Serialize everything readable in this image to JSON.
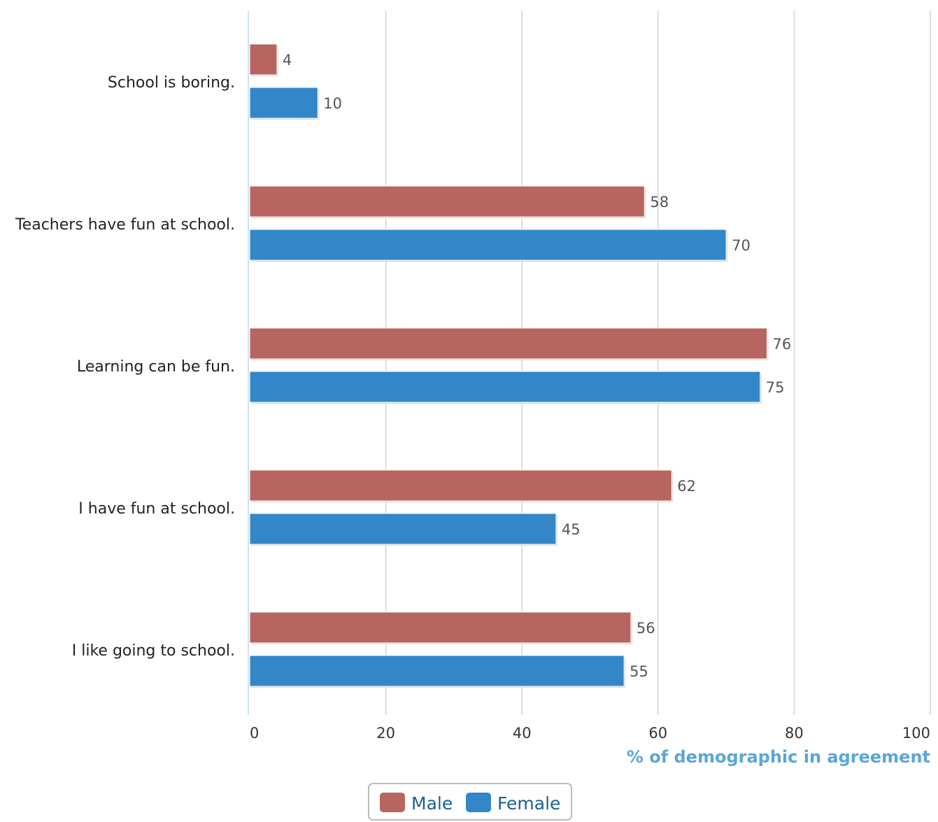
{
  "chart_data": {
    "type": "bar",
    "orientation": "horizontal",
    "categories": [
      "School is boring.",
      "Teachers have fun at school.",
      "Learning can be fun.",
      "I have fun at school.",
      "I like going to school."
    ],
    "series": [
      {
        "name": "Male",
        "color": "#b86460",
        "values": [
          4,
          58,
          76,
          62,
          56
        ]
      },
      {
        "name": "Female",
        "color": "#3386c8",
        "values": [
          10,
          70,
          75,
          45,
          55
        ]
      }
    ],
    "xlabel": "% of demographic in agreement",
    "ylabel": "",
    "xlim": [
      0,
      100
    ],
    "xticks": [
      "0",
      "20",
      "40",
      "60",
      "80",
      "100"
    ],
    "grid": true,
    "legend_position": "bottom-center"
  }
}
